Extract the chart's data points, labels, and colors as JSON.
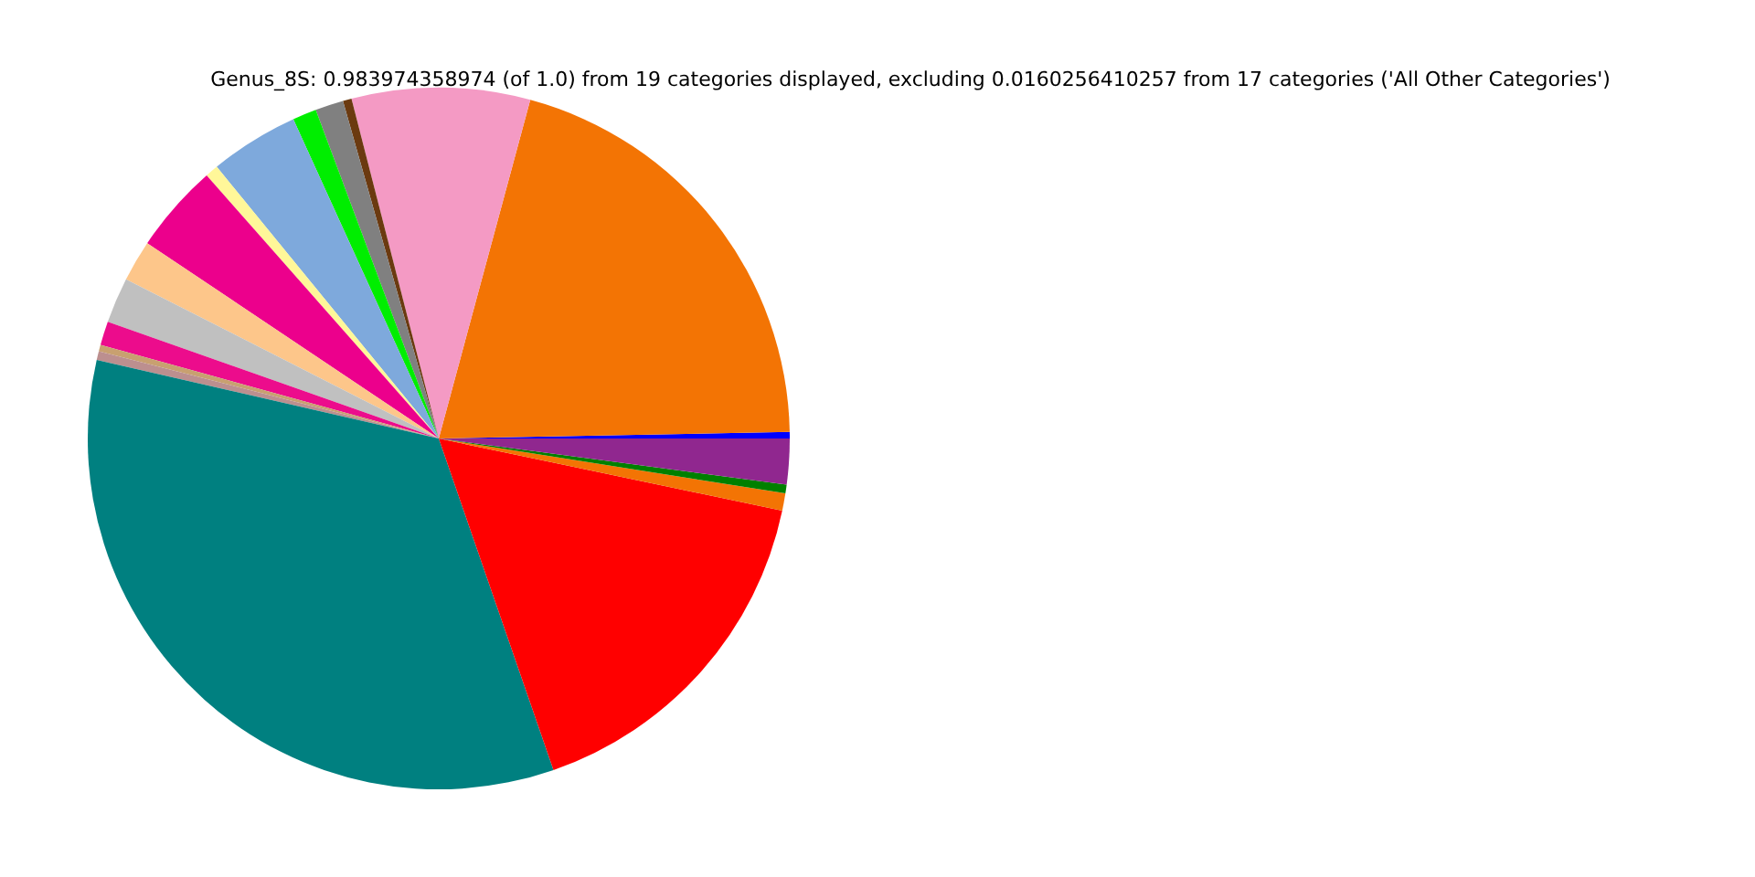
{
  "chart_data": {
    "type": "pie",
    "title": "Genus_8S: 0.983974358974 (of 1.0) from 19 categories displayed, excluding 0.0160256410257 from 17 categories ('All Other Categories')",
    "categories": [
      null,
      null,
      null,
      null,
      null,
      null,
      null,
      null,
      null,
      null,
      null,
      null,
      null,
      null,
      null,
      null,
      null,
      null,
      null
    ],
    "values": [
      0.3,
      20.5,
      8.2,
      0.4,
      1.3,
      1.1,
      4.1,
      0.6,
      4.1,
      1.9,
      2.1,
      1.1,
      0.3,
      0.4,
      33.9,
      16.4,
      0.8,
      0.4,
      2.1
    ],
    "colors": [
      "#0000ff",
      "#f37404",
      "#f49ac4",
      "#6b3a10",
      "#808080",
      "#00ee00",
      "#7ea9dc",
      "#fff799",
      "#ec008c",
      "#fdc68a",
      "#c0c0c0",
      "#ec0c8c",
      "#c8a070",
      "#bc8f8f",
      "#008080",
      "#ff0000",
      "#f37404",
      "#008000",
      "#90278f"
    ]
  }
}
